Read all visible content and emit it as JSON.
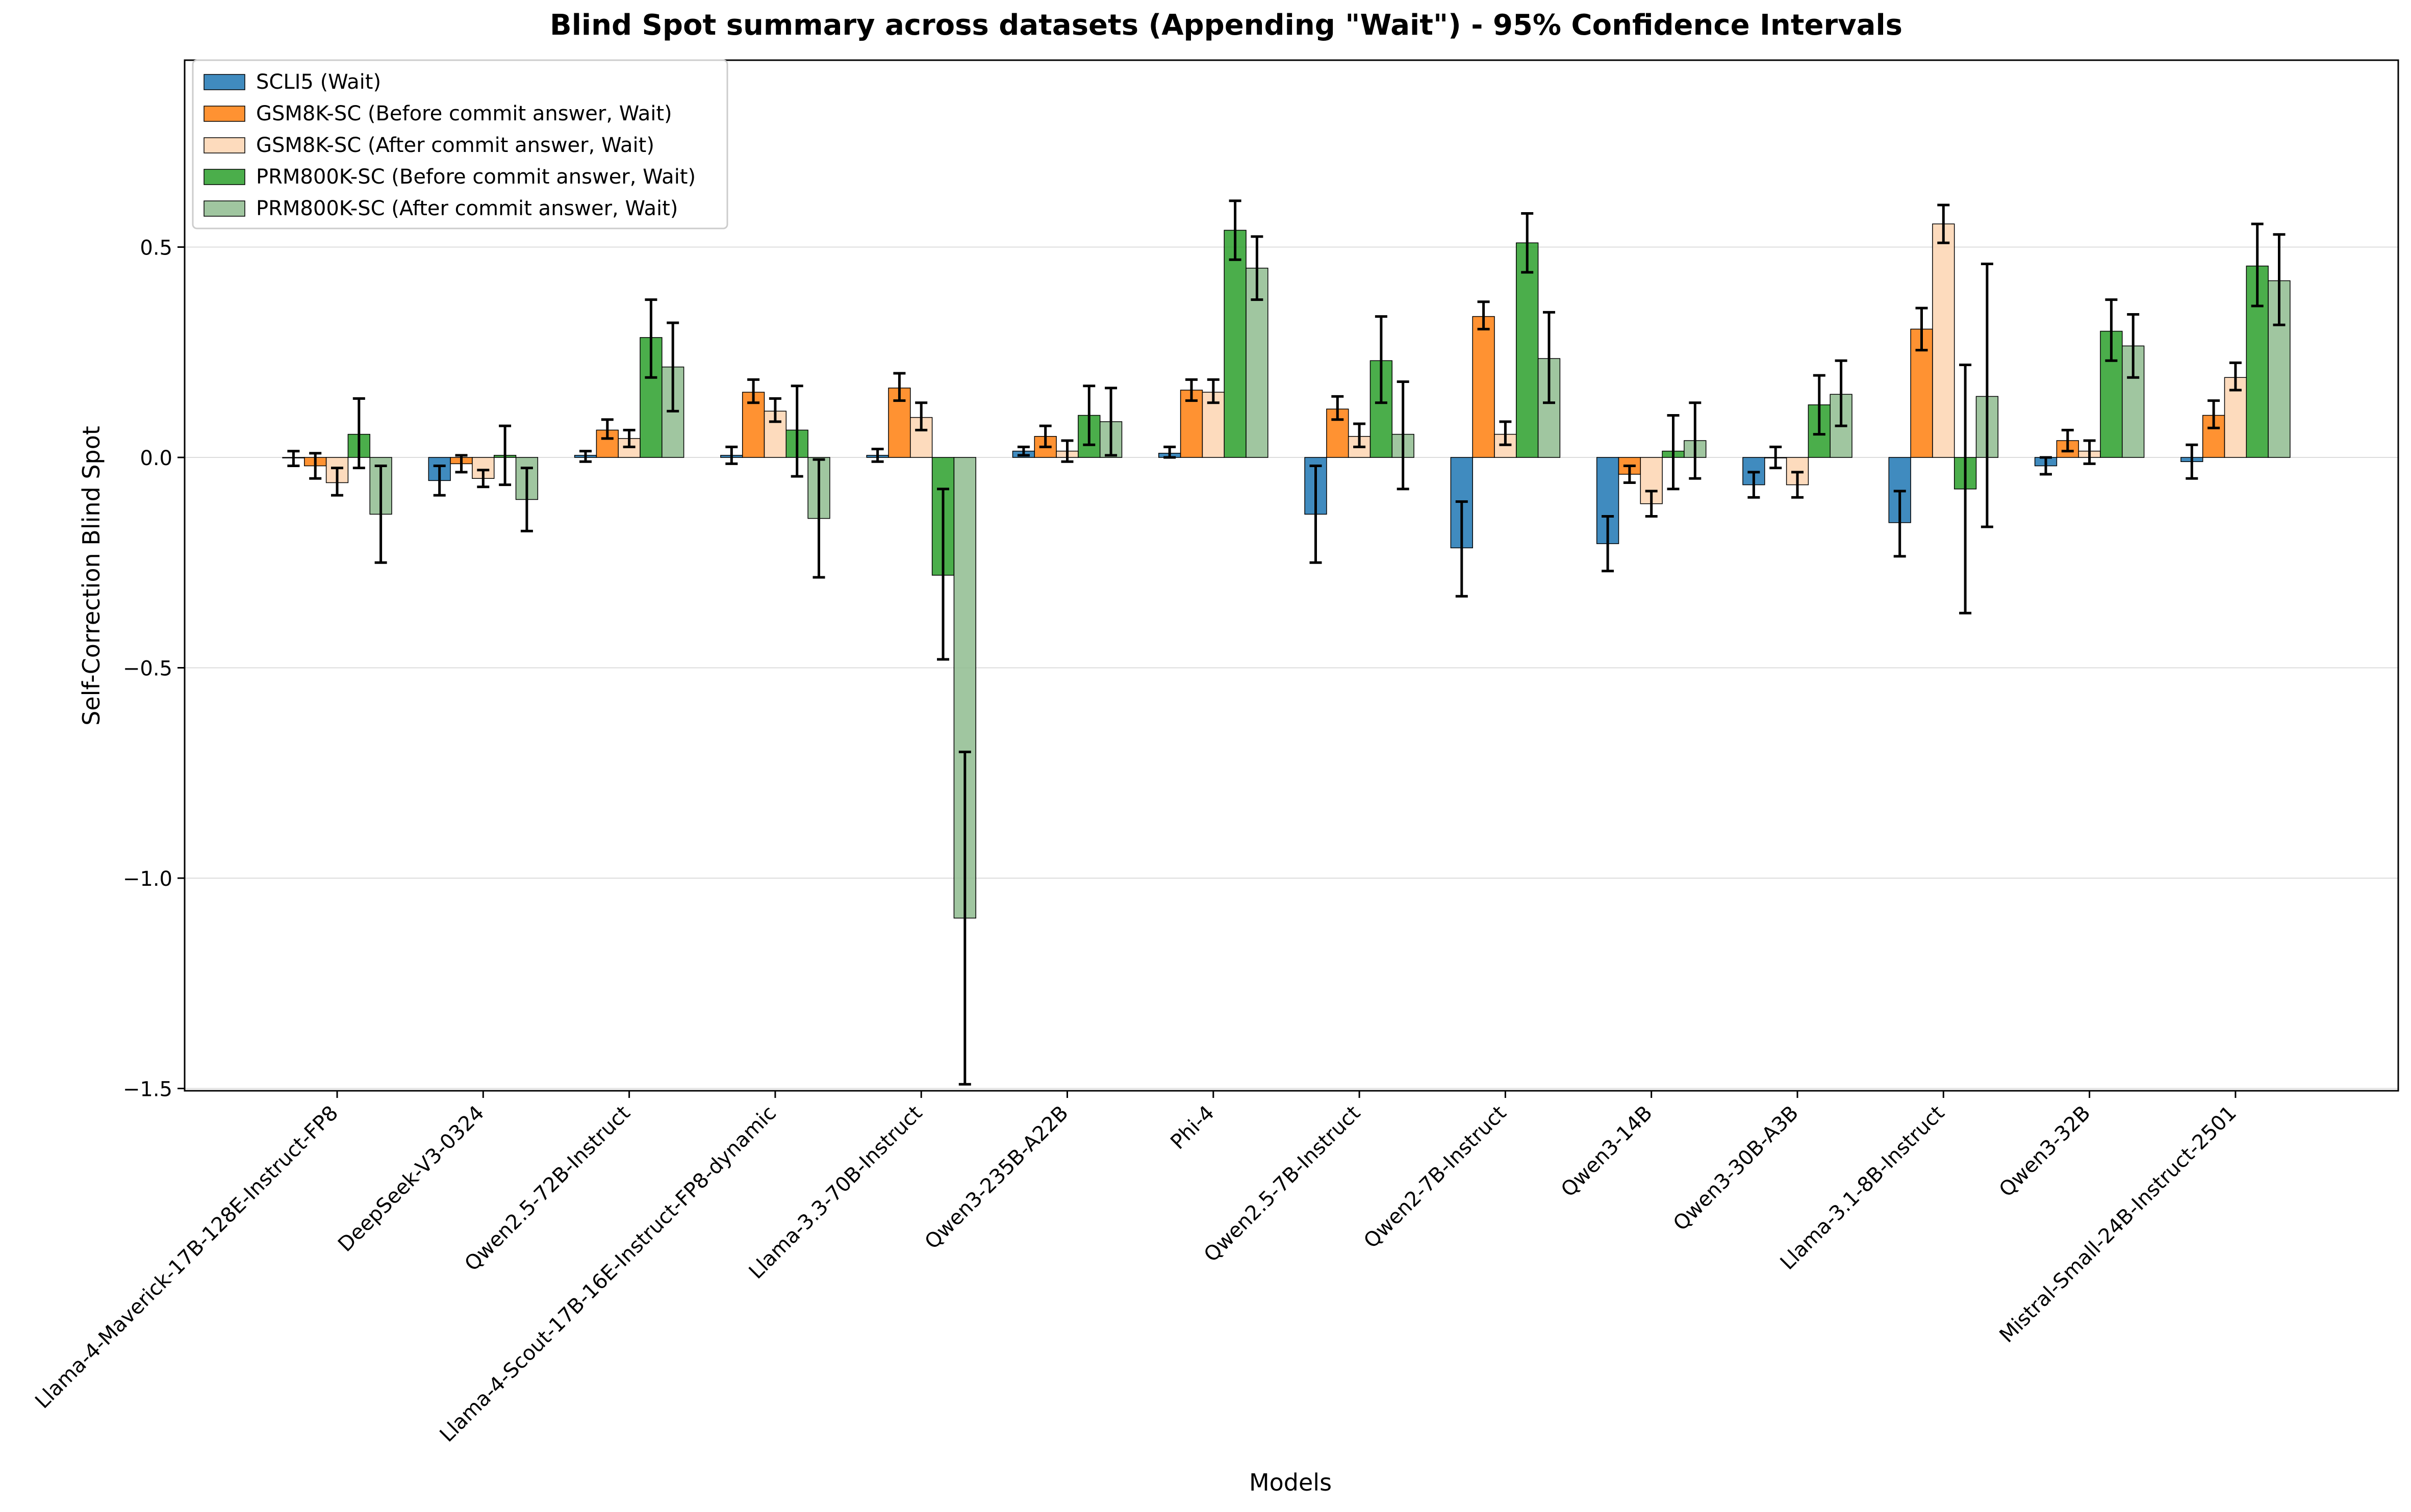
{
  "chart_data": {
    "type": "bar",
    "title": "Blind Spot summary across datasets (Appending \"Wait\") - 95% Confidence Intervals",
    "xlabel": "Models",
    "ylabel": "Self-Correction Blind Spot",
    "ylim": [
      -1.5,
      1.0
    ],
    "yticks": [
      -1.5,
      -1.0,
      -0.5,
      0.0,
      0.5
    ],
    "ytick_labels": [
      "−1.5",
      "−1.0",
      "−0.5",
      "0.0",
      "0.5"
    ],
    "grid": "horizontal",
    "legend_position": "top-left",
    "categories": [
      "Llama-4-Maverick-17B-128E-Instruct-FP8",
      "DeepSeek-V3-0324",
      "Qwen2.5-72B-Instruct",
      "Llama-4-Scout-17B-16E-Instruct-FP8-dynamic",
      "Llama-3.3-70B-Instruct",
      "Qwen3-235B-A22B",
      "Phi-4",
      "Qwen2.5-7B-Instruct",
      "Qwen2-7B-Instruct",
      "Qwen3-14B",
      "Qwen3-30B-A3B",
      "Llama-3.1-8B-Instruct",
      "Qwen3-32B",
      "Mistral-Small-24B-Instruct-2501"
    ],
    "series": [
      {
        "name": "SCLI5 (Wait)",
        "color": "#1f77b4",
        "values": [
          0.0,
          -0.055,
          0.005,
          0.005,
          0.005,
          0.015,
          0.01,
          -0.135,
          -0.215,
          -0.205,
          -0.065,
          -0.155,
          -0.02,
          -0.01
        ],
        "lower": [
          -0.02,
          -0.09,
          -0.01,
          -0.015,
          -0.01,
          0.005,
          0.0,
          -0.25,
          -0.33,
          -0.27,
          -0.095,
          -0.235,
          -0.04,
          -0.05
        ],
        "upper": [
          0.015,
          -0.02,
          0.015,
          0.025,
          0.02,
          0.025,
          0.025,
          -0.02,
          -0.105,
          -0.14,
          -0.035,
          -0.08,
          0.0,
          0.03
        ]
      },
      {
        "name": "GSM8K-SC (Before commit answer, Wait)",
        "color": "#ff7f0e",
        "values": [
          -0.02,
          -0.015,
          0.065,
          0.155,
          0.165,
          0.05,
          0.16,
          0.115,
          0.335,
          -0.04,
          0.0,
          0.305,
          0.04,
          0.1
        ],
        "lower": [
          -0.05,
          -0.035,
          0.045,
          0.13,
          0.135,
          0.025,
          0.135,
          0.09,
          0.305,
          -0.06,
          -0.025,
          0.255,
          0.015,
          0.07
        ],
        "upper": [
          0.01,
          0.005,
          0.09,
          0.185,
          0.2,
          0.075,
          0.185,
          0.145,
          0.37,
          -0.02,
          0.025,
          0.355,
          0.065,
          0.135
        ]
      },
      {
        "name": "GSM8K-SC (After commit answer, Wait)",
        "color": "#fdd5b1",
        "values": [
          -0.06,
          -0.05,
          0.045,
          0.11,
          0.095,
          0.015,
          0.155,
          0.05,
          0.055,
          -0.11,
          -0.065,
          0.555,
          0.015,
          0.19
        ],
        "lower": [
          -0.09,
          -0.07,
          0.025,
          0.085,
          0.065,
          -0.01,
          0.13,
          0.025,
          0.03,
          -0.14,
          -0.095,
          0.51,
          -0.015,
          0.16
        ],
        "upper": [
          -0.025,
          -0.03,
          0.065,
          0.14,
          0.13,
          0.04,
          0.185,
          0.08,
          0.085,
          -0.08,
          -0.035,
          0.6,
          0.04,
          0.225
        ]
      },
      {
        "name": "PRM800K-SC (Before commit answer, Wait)",
        "color": "#2ca02c",
        "values": [
          0.055,
          0.005,
          0.285,
          0.065,
          -0.28,
          0.1,
          0.54,
          0.23,
          0.51,
          0.015,
          0.125,
          -0.075,
          0.3,
          0.455
        ],
        "lower": [
          -0.025,
          -0.065,
          0.19,
          -0.045,
          -0.48,
          0.03,
          0.47,
          0.13,
          0.44,
          -0.075,
          0.055,
          -0.37,
          0.23,
          0.36
        ],
        "upper": [
          0.14,
          0.075,
          0.375,
          0.17,
          -0.075,
          0.17,
          0.61,
          0.335,
          0.58,
          0.1,
          0.195,
          0.22,
          0.375,
          0.555
        ]
      },
      {
        "name": "PRM800K-SC (After commit answer, Wait)",
        "color": "#8fbc8f",
        "values": [
          -0.135,
          -0.1,
          0.215,
          -0.145,
          -1.095,
          0.085,
          0.45,
          0.055,
          0.235,
          0.04,
          0.15,
          0.145,
          0.265,
          0.42
        ],
        "lower": [
          -0.25,
          -0.175,
          0.11,
          -0.285,
          -1.49,
          0.005,
          0.375,
          -0.075,
          0.13,
          -0.05,
          0.075,
          -0.165,
          0.19,
          0.315
        ],
        "upper": [
          -0.02,
          -0.025,
          0.32,
          -0.005,
          -0.7,
          0.165,
          0.525,
          0.18,
          0.345,
          0.13,
          0.23,
          0.46,
          0.34,
          0.53
        ]
      }
    ]
  }
}
